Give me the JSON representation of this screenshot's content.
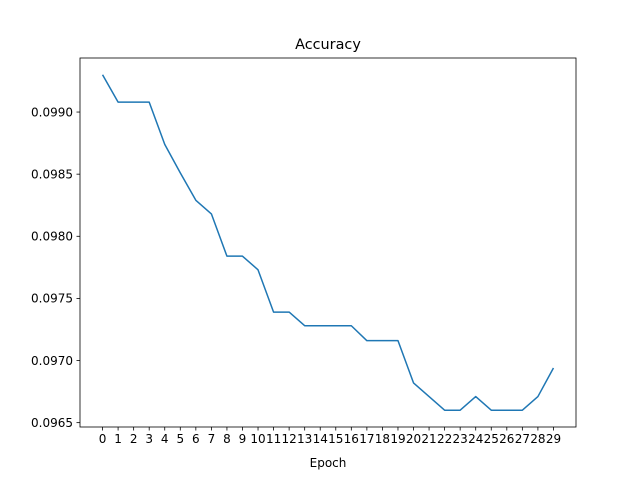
{
  "chart_data": {
    "type": "line",
    "title": "Accuracy",
    "xlabel": "Epoch",
    "ylabel": "",
    "x": [
      0,
      1,
      2,
      3,
      4,
      5,
      6,
      7,
      8,
      9,
      10,
      11,
      12,
      13,
      14,
      15,
      16,
      17,
      18,
      19,
      20,
      21,
      22,
      23,
      24,
      25,
      26,
      27,
      28,
      29
    ],
    "series": [
      {
        "values": [
          0.0993,
          0.09908,
          0.09908,
          0.09908,
          0.09874,
          0.09851,
          0.09829,
          0.09818,
          0.09784,
          0.09784,
          0.09773,
          0.09739,
          0.09739,
          0.09728,
          0.09728,
          0.09728,
          0.09728,
          0.09716,
          0.09716,
          0.09716,
          0.09682,
          0.09671,
          0.0966,
          0.0966,
          0.09671,
          0.0966,
          0.0966,
          0.0966,
          0.09671,
          0.09694
        ],
        "color": "#1f77b4"
      }
    ],
    "xticks": [
      "0",
      "1",
      "2",
      "3",
      "4",
      "5",
      "6",
      "7",
      "8",
      "9",
      "10",
      "11",
      "12",
      "13",
      "14",
      "15",
      "16",
      "17",
      "18",
      "19",
      "20",
      "21",
      "22",
      "23",
      "24",
      "25",
      "26",
      "27",
      "28",
      "29"
    ],
    "yticks": [
      0.0965,
      0.097,
      0.0975,
      0.098,
      0.0985,
      0.099
    ],
    "ytick_labels": [
      "0.0965",
      "0.0970",
      "0.0975",
      "0.0980",
      "0.0985",
      "0.0990"
    ],
    "xlim": [
      -1.45,
      30.45
    ],
    "ylim": [
      0.096465,
      0.099435
    ],
    "grid": false
  }
}
